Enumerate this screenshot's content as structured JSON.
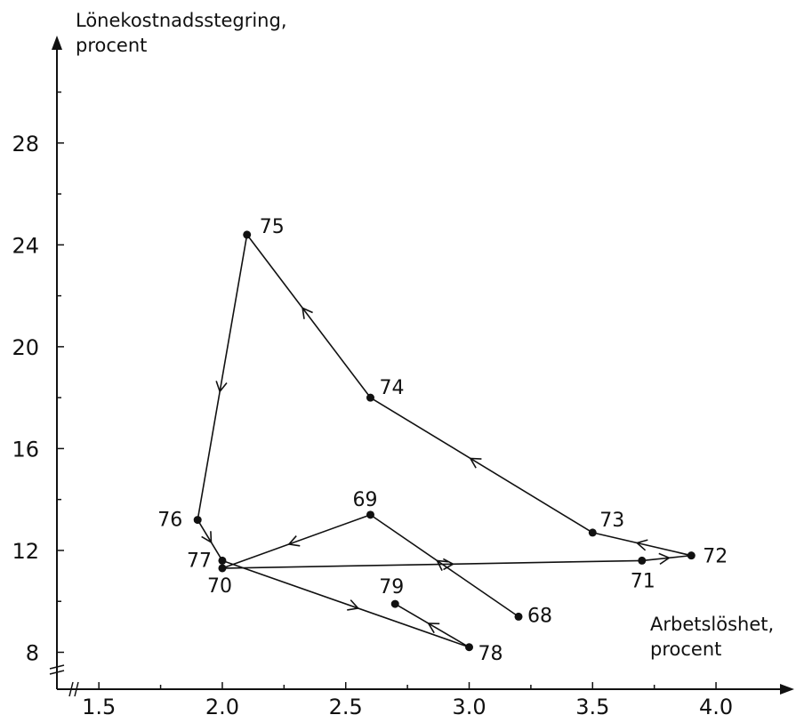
{
  "chart_data": {
    "type": "line",
    "xlabel": [
      "Arbetslöshet,",
      "procent"
    ],
    "ylabel": [
      "Lönekostnadsstegring,",
      "procent"
    ],
    "xlim": [
      1.33,
      4.27
    ],
    "ylim": [
      6.55,
      31.8
    ],
    "x_ticks": [
      1.5,
      2.0,
      2.5,
      3.0,
      3.5,
      4.0
    ],
    "x_tick_labels": [
      "1.5",
      "2.0",
      "2.5",
      "3.0",
      "3.5",
      "4.0"
    ],
    "y_ticks": [
      8,
      12,
      16,
      20,
      24,
      28
    ],
    "y_tick_labels": [
      "8",
      "12",
      "16",
      "20",
      "24",
      "28"
    ],
    "series": [
      {
        "points": [
          {
            "label": "68",
            "x": 3.2,
            "y": 9.4
          },
          {
            "label": "69",
            "x": 2.6,
            "y": 13.4
          },
          {
            "label": "70",
            "x": 2.0,
            "y": 11.3
          },
          {
            "label": "71",
            "x": 3.7,
            "y": 11.6
          },
          {
            "label": "72",
            "x": 3.9,
            "y": 11.8
          },
          {
            "label": "73",
            "x": 3.5,
            "y": 12.7
          },
          {
            "label": "74",
            "x": 2.6,
            "y": 18.0
          },
          {
            "label": "75",
            "x": 2.1,
            "y": 24.4
          },
          {
            "label": "76",
            "x": 1.9,
            "y": 13.2
          },
          {
            "label": "77",
            "x": 2.0,
            "y": 11.6
          },
          {
            "label": "78",
            "x": 3.0,
            "y": 8.2
          },
          {
            "label": "79",
            "x": 2.7,
            "y": 9.9
          }
        ]
      }
    ]
  }
}
